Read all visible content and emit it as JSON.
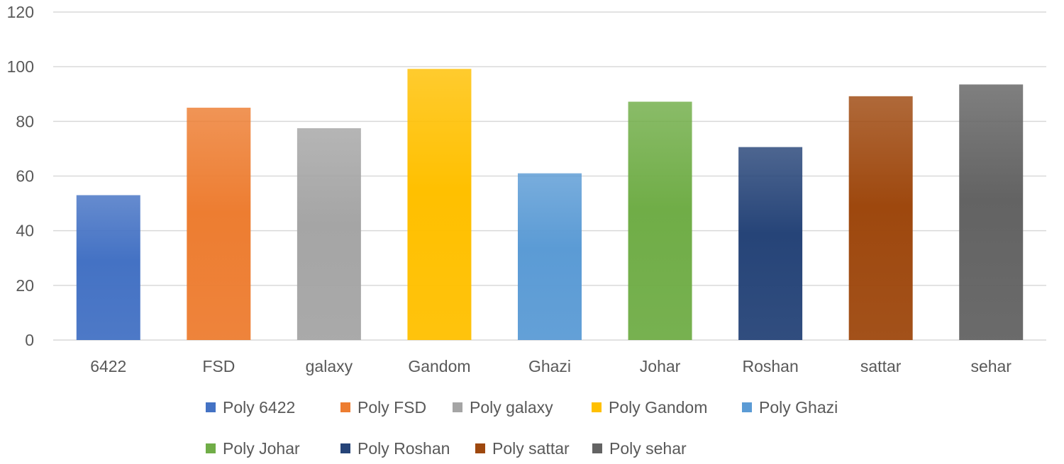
{
  "chart_data": {
    "type": "bar",
    "categories": [
      "6422",
      "FSD",
      "galaxy",
      "Gandom",
      "Ghazi",
      "Johar",
      "Roshan",
      "sattar",
      "sehar"
    ],
    "values": [
      53,
      85,
      77.5,
      99.2,
      61,
      87.2,
      70.6,
      89.2,
      93.5
    ],
    "colors": [
      "#4472c4",
      "#ed7d31",
      "#a5a5a5",
      "#ffc000",
      "#5b9bd5",
      "#70ad47",
      "#264478",
      "#9e480e",
      "#636363"
    ],
    "legend": [
      "Poly 6422",
      "Poly FSD",
      "Poly galaxy",
      "Poly Gandom",
      "Poly Ghazi",
      "Poly Johar",
      "Poly Roshan",
      "Poly sattar",
      "Poly sehar"
    ],
    "yticks": [
      "0",
      "20",
      "40",
      "60",
      "80",
      "100",
      "120"
    ],
    "ylim": [
      0,
      120
    ],
    "grid": true,
    "legend_position": "bottom"
  }
}
